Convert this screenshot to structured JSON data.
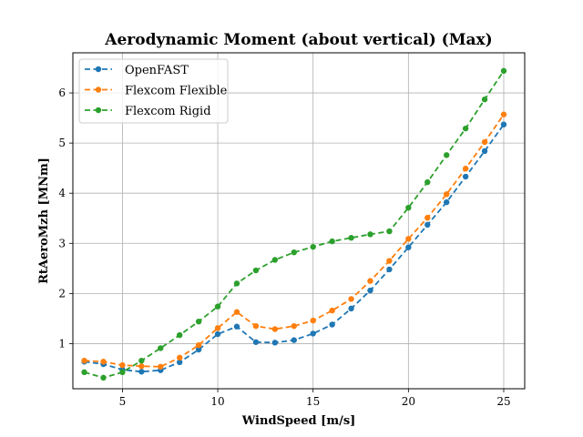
{
  "chart_data": {
    "type": "line",
    "title": "Aerodynamic Moment (about vertical) (Max)",
    "xlabel": "WindSpeed [m/s]",
    "ylabel": "RtAeroMzh [MNm]",
    "xlim": [
      2.4,
      26.1
    ],
    "ylim": [
      0.1,
      6.8
    ],
    "xticks": [
      5,
      10,
      15,
      20,
      25
    ],
    "yticks": [
      1,
      2,
      3,
      4,
      5,
      6
    ],
    "grid": true,
    "legend_position": "top-left",
    "x": [
      3,
      4,
      5,
      6,
      7,
      8,
      9,
      10,
      11,
      12,
      13,
      14,
      15,
      16,
      17,
      18,
      19,
      20,
      21,
      22,
      23,
      24,
      25
    ],
    "series": [
      {
        "name": "OpenFAST",
        "color": "#1f77b4",
        "values": [
          0.64,
          0.59,
          0.48,
          0.44,
          0.47,
          0.63,
          0.88,
          1.19,
          1.34,
          1.03,
          1.02,
          1.07,
          1.2,
          1.38,
          1.7,
          2.06,
          2.48,
          2.92,
          3.37,
          3.82,
          4.33,
          4.84,
          5.37
        ]
      },
      {
        "name": "Flexcom Flexible",
        "color": "#ff7f0e",
        "values": [
          0.66,
          0.64,
          0.57,
          0.55,
          0.54,
          0.72,
          0.97,
          1.31,
          1.63,
          1.35,
          1.29,
          1.35,
          1.46,
          1.66,
          1.89,
          2.25,
          2.65,
          3.09,
          3.51,
          3.98,
          4.49,
          5.02,
          5.57
        ]
      },
      {
        "name": "Flexcom Rigid",
        "color": "#2ca02c",
        "values": [
          0.43,
          0.32,
          0.43,
          0.66,
          0.91,
          1.17,
          1.44,
          1.74,
          2.2,
          2.46,
          2.67,
          2.82,
          2.93,
          3.04,
          3.11,
          3.18,
          3.24,
          3.71,
          4.22,
          4.76,
          5.29,
          5.87,
          6.44
        ]
      }
    ]
  }
}
